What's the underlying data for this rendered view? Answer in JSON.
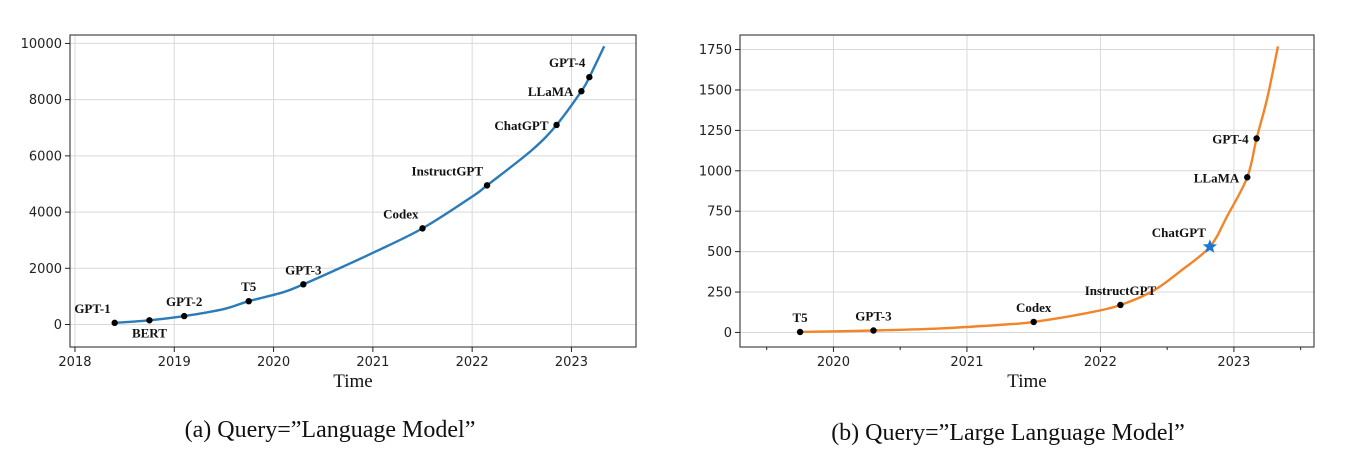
{
  "chart_data": [
    {
      "type": "line",
      "caption": "(a) Query=”Language Model”",
      "xlabel": "Time",
      "ylabel": "",
      "xlim": [
        2017.95,
        2023.65
      ],
      "ylim": [
        -800,
        10300
      ],
      "xticks": [
        2018,
        2019,
        2020,
        2021,
        2022,
        2023
      ],
      "yticks": [
        0,
        2000,
        4000,
        6000,
        8000,
        10000
      ],
      "grid": true,
      "color": "#2b7bb9",
      "series": [
        {
          "x": [
            2018.4,
            2018.75,
            2019.1,
            2019.5,
            2019.75,
            2020.1,
            2020.3,
            2020.6,
            2021.0,
            2021.5,
            2022.0,
            2022.15,
            2022.6,
            2022.85,
            2023.1,
            2023.18,
            2023.33
          ],
          "values": [
            60,
            150,
            300,
            550,
            830,
            1150,
            1430,
            1900,
            2550,
            3420,
            4550,
            4950,
            6200,
            7100,
            8300,
            8800,
            9900
          ]
        }
      ],
      "annotations": [
        {
          "label": "GPT-1",
          "x": 2018.4,
          "y": 60,
          "pos": "upper-left"
        },
        {
          "label": "BERT",
          "x": 2018.75,
          "y": 150,
          "pos": "below"
        },
        {
          "label": "GPT-2",
          "x": 2019.1,
          "y": 300,
          "pos": "upper"
        },
        {
          "label": "T5",
          "x": 2019.75,
          "y": 830,
          "pos": "upper"
        },
        {
          "label": "GPT-3",
          "x": 2020.3,
          "y": 1430,
          "pos": "upper"
        },
        {
          "label": "Codex",
          "x": 2021.5,
          "y": 3420,
          "pos": "upper-left"
        },
        {
          "label": "InstructGPT",
          "x": 2022.15,
          "y": 4950,
          "pos": "upper-left"
        },
        {
          "label": "ChatGPT",
          "x": 2022.85,
          "y": 7100,
          "pos": "left"
        },
        {
          "label": "LLaMA",
          "x": 2023.1,
          "y": 8300,
          "pos": "left"
        },
        {
          "label": "GPT-4",
          "x": 2023.18,
          "y": 8800,
          "pos": "upper-left"
        }
      ]
    },
    {
      "type": "line",
      "caption": "(b) Query=”Large Language Model”",
      "xlabel": "Time",
      "ylabel": "",
      "xlim": [
        2019.3,
        2023.6
      ],
      "ylim": [
        -90,
        1840
      ],
      "xticks": [
        2020,
        2021,
        2022,
        2023
      ],
      "yticks": [
        0,
        250,
        500,
        750,
        1000,
        1250,
        1500,
        1750
      ],
      "grid": true,
      "color": "#f2852a",
      "series": [
        {
          "x": [
            2019.75,
            2020.3,
            2020.8,
            2021.3,
            2021.5,
            2021.9,
            2022.15,
            2022.4,
            2022.6,
            2022.82,
            2022.95,
            2023.1,
            2023.17,
            2023.25,
            2023.33
          ],
          "values": [
            3,
            12,
            25,
            50,
            65,
            120,
            170,
            260,
            380,
            530,
            720,
            960,
            1200,
            1450,
            1770
          ]
        }
      ],
      "annotations": [
        {
          "label": "T5",
          "x": 2019.75,
          "y": 3,
          "pos": "upper",
          "marker": "dot"
        },
        {
          "label": "GPT-3",
          "x": 2020.3,
          "y": 12,
          "pos": "upper",
          "marker": "dot"
        },
        {
          "label": "Codex",
          "x": 2021.5,
          "y": 65,
          "pos": "upper",
          "marker": "dot"
        },
        {
          "label": "InstructGPT",
          "x": 2022.15,
          "y": 170,
          "pos": "upper",
          "marker": "dot"
        },
        {
          "label": "ChatGPT",
          "x": 2022.82,
          "y": 530,
          "pos": "upper-left",
          "marker": "star"
        },
        {
          "label": "LLaMA",
          "x": 2023.1,
          "y": 960,
          "pos": "left",
          "marker": "dot"
        },
        {
          "label": "GPT-4",
          "x": 2023.17,
          "y": 1200,
          "pos": "left",
          "marker": "dot"
        }
      ]
    }
  ]
}
